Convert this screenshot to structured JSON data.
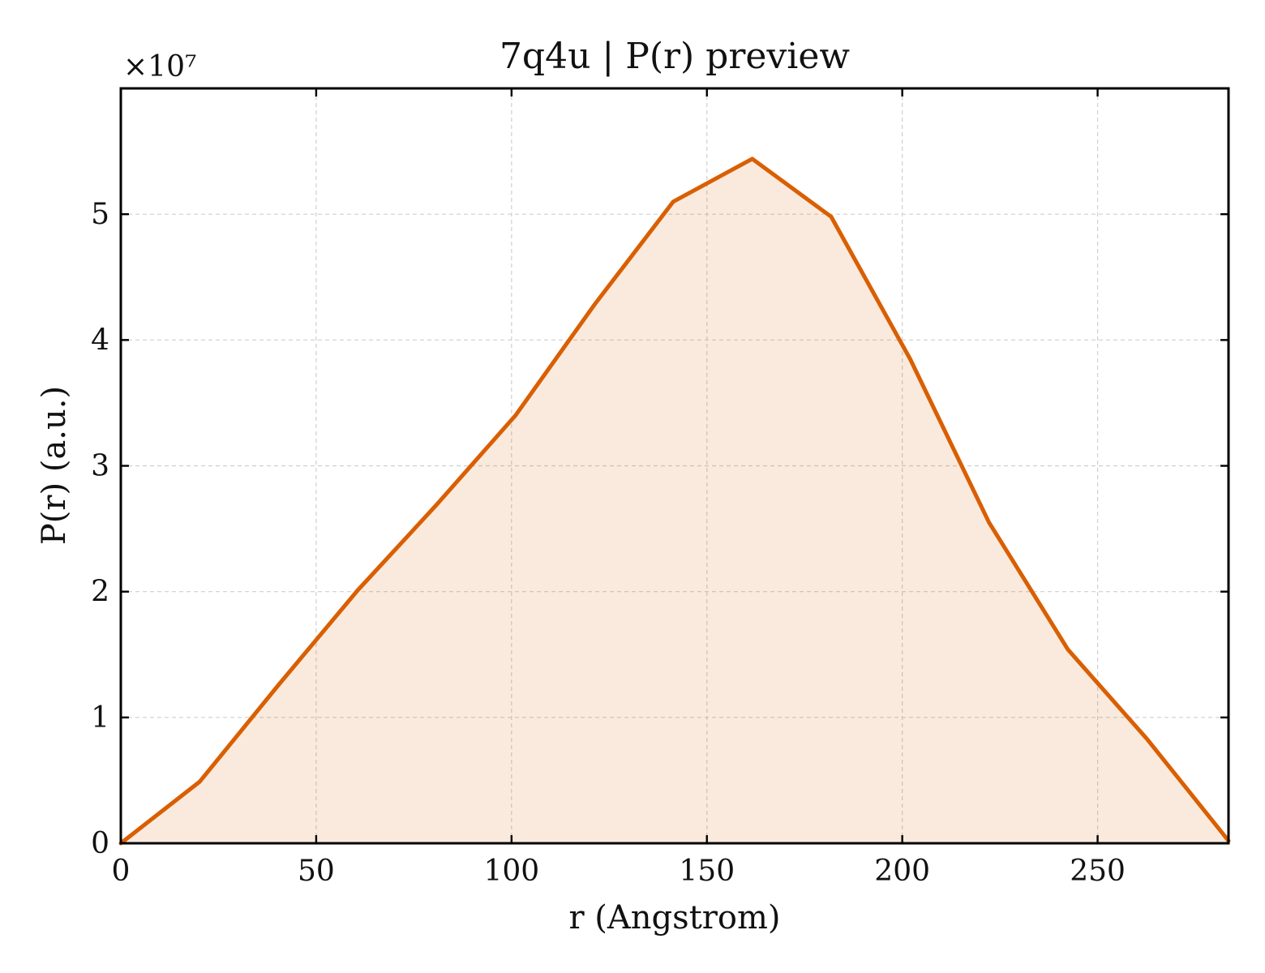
{
  "chart_data": {
    "type": "area",
    "title": "7q4u | P(r) preview",
    "xlabel": "r (Angstrom)",
    "ylabel": "P(r) (a.u.)",
    "y_offset_label": "×10⁷",
    "xlim": [
      0,
      283.5
    ],
    "ylim": [
      0,
      6.0
    ],
    "y_scale_factor": 10000000,
    "grid": true,
    "x_ticks": [
      0,
      50,
      100,
      150,
      200,
      250
    ],
    "x_tick_labels": [
      "0",
      "50",
      "100",
      "150",
      "200",
      "250"
    ],
    "y_ticks": [
      0,
      1,
      2,
      3,
      4,
      5
    ],
    "y_tick_labels": [
      "0",
      "1",
      "2",
      "3",
      "4",
      "5"
    ],
    "series": [
      {
        "color": "#d95f02",
        "fill_color": "#d95f02",
        "fill_opacity": 0.13,
        "x": [
          0,
          20.2,
          40.4,
          60.6,
          80.8,
          101.0,
          121.2,
          141.4,
          161.6,
          181.8,
          202.0,
          222.2,
          242.4,
          262.6,
          283.5
        ],
        "y": [
          0.0,
          0.49,
          1.26,
          2.01,
          2.69,
          3.4,
          4.28,
          5.1,
          5.44,
          4.98,
          3.85,
          2.55,
          1.54,
          0.83,
          0.02
        ]
      }
    ]
  }
}
